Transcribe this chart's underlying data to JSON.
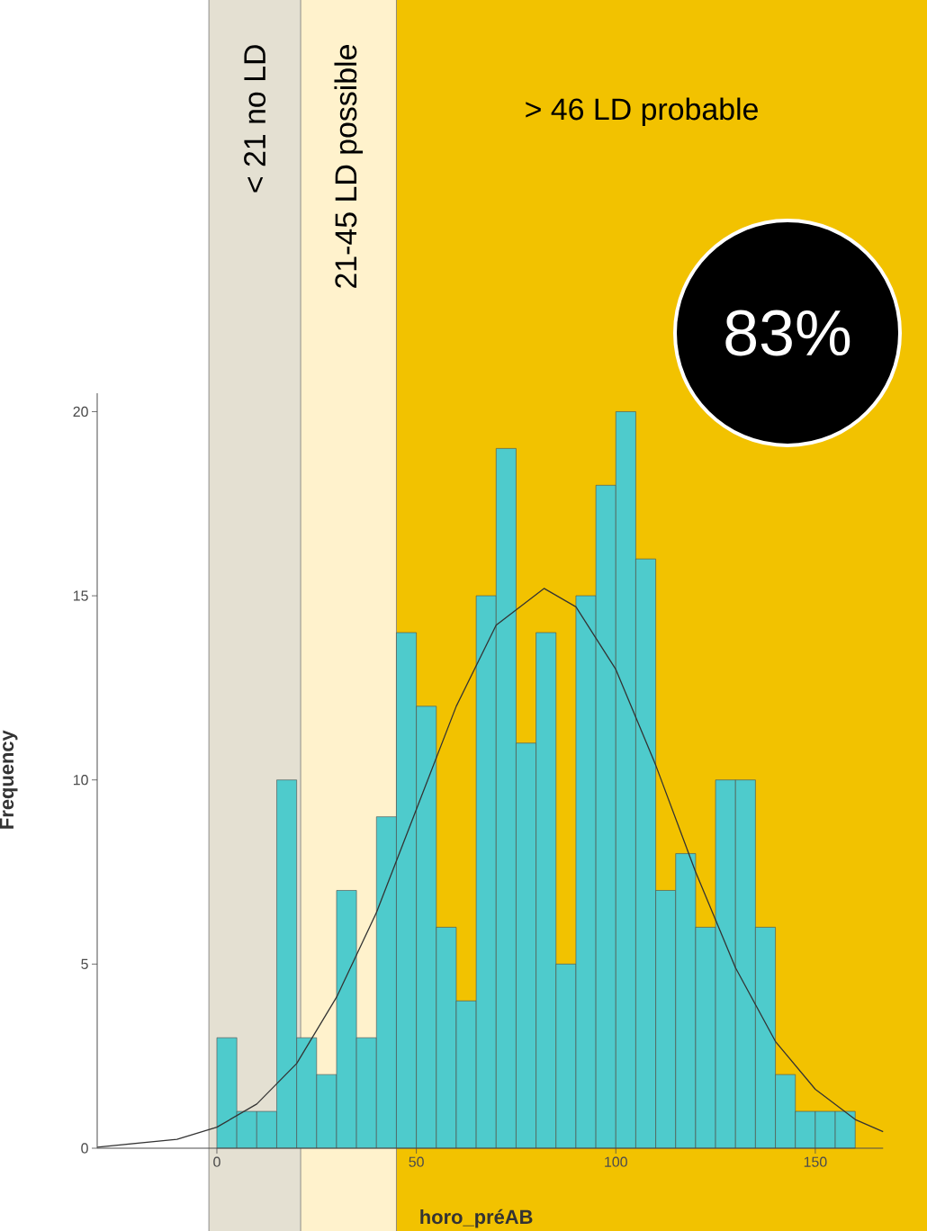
{
  "chart_data": {
    "type": "histogram",
    "xlabel": "horo_préAB",
    "ylabel": "Frequency",
    "bins": [
      0,
      5,
      10,
      15,
      20,
      25,
      30,
      35,
      40,
      45,
      50,
      55,
      60,
      65,
      70,
      75,
      80,
      85,
      90,
      95,
      100,
      105,
      110,
      115,
      120,
      125,
      130,
      135,
      140,
      145,
      150,
      155,
      160
    ],
    "values": [
      3,
      1,
      1,
      10,
      3,
      2,
      7,
      3,
      9,
      14,
      12,
      6,
      4,
      15,
      19,
      11,
      14,
      5,
      15,
      18,
      20,
      16,
      7,
      8,
      6,
      10,
      10,
      6,
      2,
      1,
      1,
      1
    ],
    "color": "#4ecbcc",
    "series": [
      {
        "type": "line",
        "color": "#333333",
        "x": [
          -30,
          -10,
          0,
          10,
          20,
          30,
          40,
          50,
          60,
          70,
          82,
          90,
          100,
          110,
          120,
          130,
          140,
          150,
          160,
          167
        ],
        "values": [
          0.03,
          0.24,
          0.57,
          1.2,
          2.3,
          4.1,
          6.4,
          9.2,
          12.0,
          14.2,
          15.2,
          14.7,
          13.0,
          10.4,
          7.5,
          4.9,
          2.9,
          1.6,
          0.78,
          0.45
        ]
      }
    ],
    "xlim": [
      -30,
      178
    ],
    "ylim": [
      0,
      20.5
    ],
    "xticks": [
      0,
      50,
      100,
      150
    ],
    "yticks": [
      0,
      5,
      10,
      15,
      20
    ],
    "bands": [
      {
        "axis": "x",
        "from": -2,
        "to": 21,
        "label": "< 21   no LD",
        "color": "#e4e0d2"
      },
      {
        "axis": "x",
        "from": 21,
        "to": 45,
        "label": "21-45   LD possible",
        "color": "#fff2cc"
      },
      {
        "axis": "x",
        "from": 45,
        "to": 178,
        "label": "> 46 LD probable",
        "color": "#f2c200"
      }
    ],
    "annotations": [
      "83%"
    ],
    "grid": false
  }
}
